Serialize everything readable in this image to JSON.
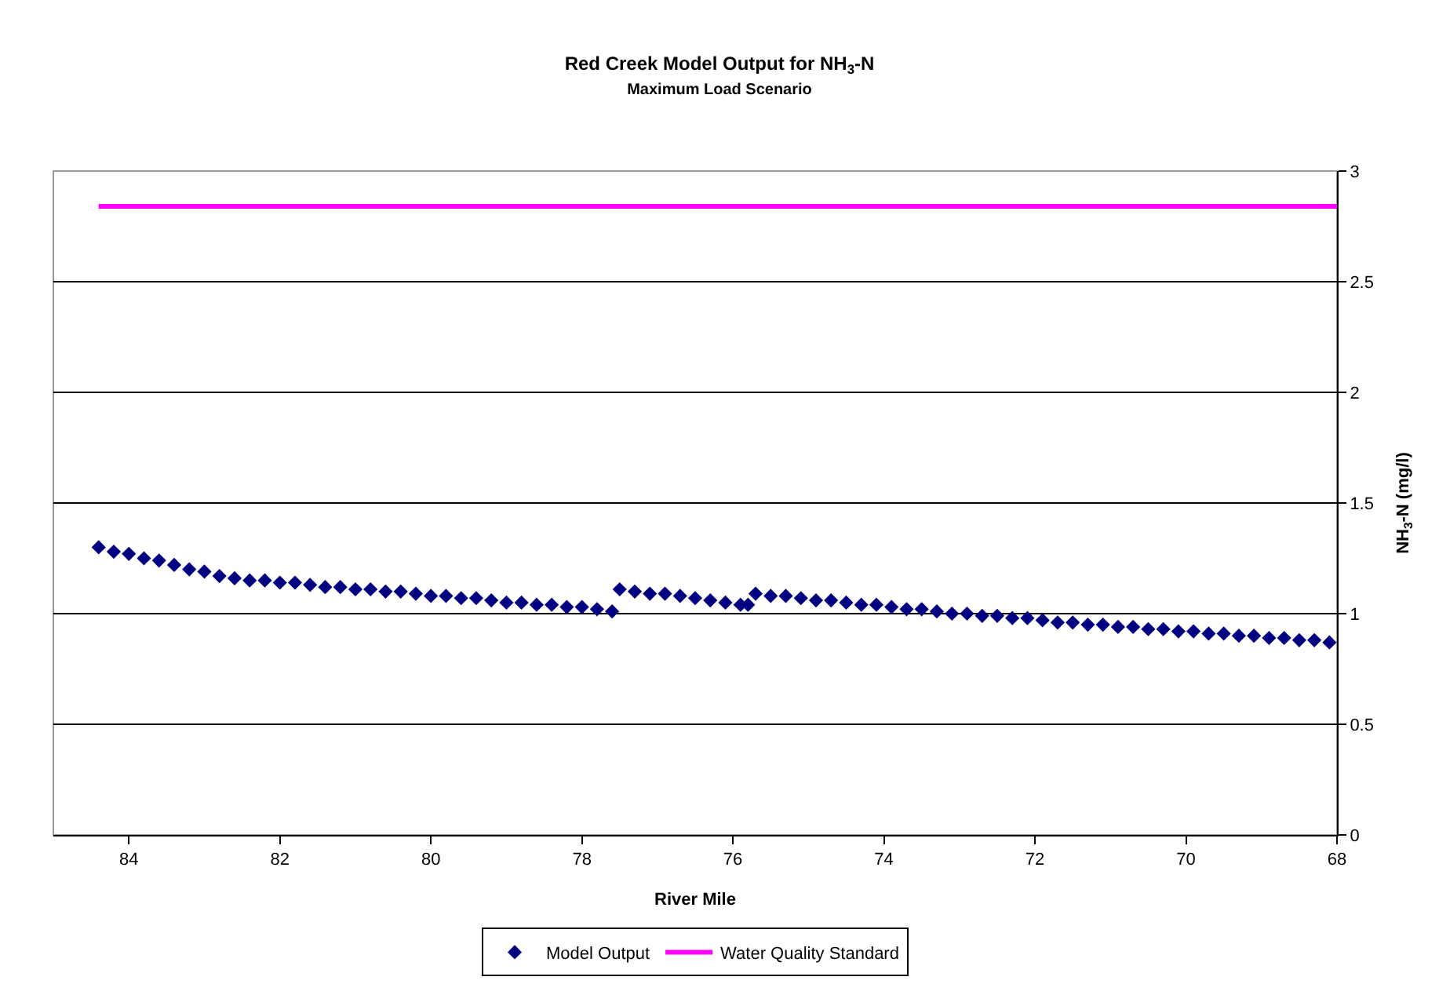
{
  "chart_data": {
    "type": "scatter",
    "title": "Red Creek Model Output for NH$_{3}$-N",
    "subtitle": "Maximum Load Scenario",
    "xlabel": "River Mile",
    "ylabel": "NH$_{3}$-N (mg/l)",
    "xlim": [
      85,
      68
    ],
    "xticks": [
      84,
      82,
      80,
      78,
      76,
      74,
      72,
      70,
      68
    ],
    "ylim": [
      0,
      3
    ],
    "yticks": [
      0,
      0.5,
      1,
      1.5,
      2,
      2.5,
      3
    ],
    "grid": "y",
    "legend": "bottom",
    "series": [
      {
        "name": "Model Output",
        "marker": "diamond",
        "color": "#000080",
        "x": [
          84.4,
          84.2,
          84.0,
          83.8,
          83.6,
          83.4,
          83.2,
          83.0,
          82.8,
          82.6,
          82.4,
          82.2,
          82.0,
          81.8,
          81.6,
          81.4,
          81.2,
          81.0,
          80.8,
          80.6,
          80.4,
          80.2,
          80.0,
          79.8,
          79.6,
          79.4,
          79.2,
          79.0,
          78.8,
          78.6,
          78.4,
          78.2,
          78.0,
          77.8,
          77.6,
          77.5,
          77.3,
          77.1,
          76.9,
          76.7,
          76.5,
          76.3,
          76.1,
          75.9,
          75.8,
          75.7,
          75.5,
          75.3,
          75.1,
          74.9,
          74.7,
          74.5,
          74.3,
          74.1,
          73.9,
          73.7,
          73.5,
          73.3,
          73.1,
          72.9,
          72.7,
          72.5,
          72.3,
          72.1,
          71.9,
          71.7,
          71.5,
          71.3,
          71.1,
          70.9,
          70.7,
          70.5,
          70.3,
          70.1,
          69.9,
          69.7,
          69.5,
          69.3,
          69.1,
          68.9,
          68.7,
          68.5,
          68.3,
          68.1
        ],
        "values": [
          1.3,
          1.28,
          1.27,
          1.25,
          1.24,
          1.22,
          1.2,
          1.19,
          1.17,
          1.16,
          1.15,
          1.15,
          1.14,
          1.14,
          1.13,
          1.12,
          1.12,
          1.11,
          1.11,
          1.1,
          1.1,
          1.09,
          1.08,
          1.08,
          1.07,
          1.07,
          1.06,
          1.05,
          1.05,
          1.04,
          1.04,
          1.03,
          1.03,
          1.02,
          1.01,
          1.11,
          1.1,
          1.09,
          1.09,
          1.08,
          1.07,
          1.06,
          1.05,
          1.04,
          1.04,
          1.09,
          1.08,
          1.08,
          1.07,
          1.06,
          1.06,
          1.05,
          1.04,
          1.04,
          1.03,
          1.02,
          1.02,
          1.01,
          1.0,
          1.0,
          0.99,
          0.99,
          0.98,
          0.98,
          0.97,
          0.96,
          0.96,
          0.95,
          0.95,
          0.94,
          0.94,
          0.93,
          0.93,
          0.92,
          0.92,
          0.91,
          0.91,
          0.9,
          0.9,
          0.89,
          0.89,
          0.88,
          0.88,
          0.87
        ]
      },
      {
        "name": "Water Quality Standard",
        "type": "line",
        "color": "#ff00ff",
        "x": [
          84.4,
          68
        ],
        "values": [
          2.84,
          2.84
        ]
      }
    ]
  }
}
